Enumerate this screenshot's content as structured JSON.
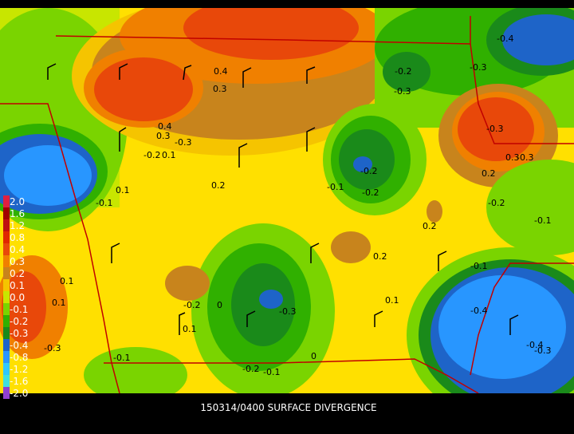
{
  "caption": "150314/0400 SURFACE DIVERGENCE",
  "legend": {
    "levels": [
      {
        "label": "2.0",
        "color": "#e02040"
      },
      {
        "label": "1.6",
        "color": "#a00000"
      },
      {
        "label": "1.2",
        "color": "#c01010"
      },
      {
        "label": "0.8",
        "color": "#e02800"
      },
      {
        "label": "0.4",
        "color": "#e8480a"
      },
      {
        "label": "0.3",
        "color": "#f08000"
      },
      {
        "label": "0.2",
        "color": "#c8841c"
      },
      {
        "label": "0.1",
        "color": "#f5c400"
      },
      {
        "label": "0.0",
        "color": "#c8e600"
      },
      {
        "label": "-0.1",
        "color": "#7ad400"
      },
      {
        "label": "-0.2",
        "color": "#30b000"
      },
      {
        "label": "-0.3",
        "color": "#1a8a1a"
      },
      {
        "label": "-0.4",
        "color": "#1e64c8"
      },
      {
        "label": "-0.8",
        "color": "#2896ff"
      },
      {
        "label": "-1.2",
        "color": "#30c8ff"
      },
      {
        "label": "-1.6",
        "color": "#40e0e0"
      },
      {
        "label": "-2.0",
        "color": "#9040d0"
      }
    ]
  },
  "contour_labels": [
    "0.4",
    "0.3",
    "0.4",
    "0.3",
    "-0.2",
    "0.1",
    "-0.3",
    "-0.4",
    "0.1",
    "-0.1",
    "-0.2",
    "-0.3",
    "-0.3",
    "-0.2",
    "-0.3",
    "0.3",
    "0.2",
    "-0.3",
    "0.2",
    "-0.2",
    "0.2",
    "-0.1",
    "0.1",
    "0.2",
    "-0.2",
    "0.1",
    "-0.3",
    "0.1",
    "-0.1",
    "0",
    "-0.2",
    "-0.1",
    "0.1",
    "-0.3",
    "-0.4",
    "-0.4",
    "-0.3",
    "-0.1",
    "-0.2",
    "-0.1",
    "0"
  ]
}
